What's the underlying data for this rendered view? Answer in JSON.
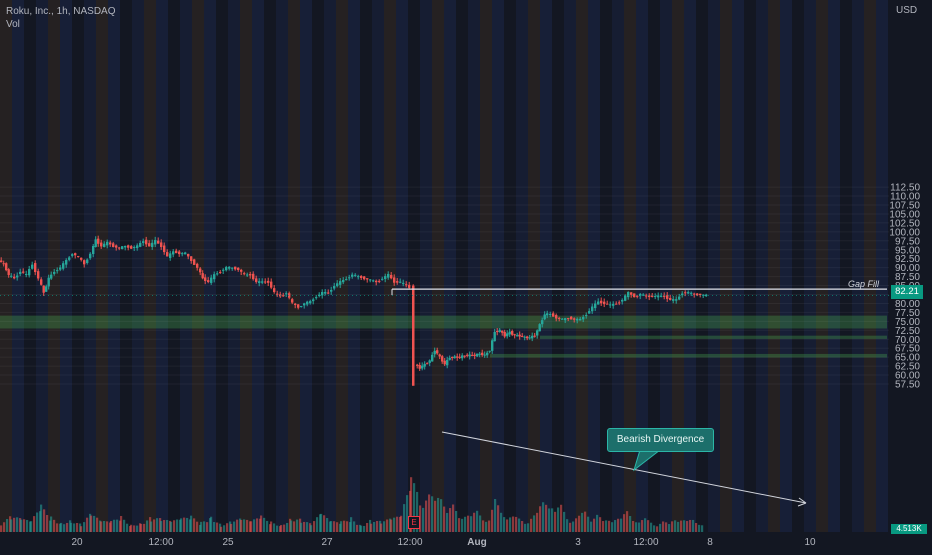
{
  "header": {
    "symbol_line": "Roku, Inc., 1h, NASDAQ",
    "volume_label": "Vol",
    "currency": "USD"
  },
  "chart_data": {
    "type": "candlestick",
    "title": "Roku, Inc., 1h, NASDAQ",
    "ylabel": "USD",
    "ylim": [
      56,
      113
    ],
    "y_ticks": [
      "112.50",
      "110.00",
      "107.50",
      "105.00",
      "102.50",
      "100.00",
      "97.50",
      "95.00",
      "92.50",
      "90.00",
      "87.50",
      "85.00",
      "82.50",
      "80.00",
      "77.50",
      "75.00",
      "72.50",
      "70.00",
      "67.50",
      "65.00",
      "62.50",
      "60.00",
      "57.50"
    ],
    "x_ticks": [
      "20",
      "12:00",
      "25",
      "27",
      "12:00",
      "Aug",
      "3",
      "12:00",
      "8",
      "10"
    ],
    "last_price": "82.21",
    "volume_last": "4.513K",
    "annotations": {
      "gap_fill": {
        "label": "Gap Fill",
        "price": 84.0
      },
      "bearish_divergence": {
        "label": "Bearish Divergence"
      },
      "earnings_marker": "E"
    },
    "zones": [
      {
        "from": 73.0,
        "to": 76.6
      },
      {
        "from": 70.1,
        "to": 71.0
      },
      {
        "from": 64.9,
        "to": 65.9
      }
    ],
    "colors": {
      "up": "#26a69a",
      "down": "#ef5350",
      "background": "#131722"
    },
    "price_path": [
      [
        0,
        92
      ],
      [
        5,
        91
      ],
      [
        10,
        88
      ],
      [
        16,
        87
      ],
      [
        22,
        89
      ],
      [
        28,
        88
      ],
      [
        34,
        91
      ],
      [
        40,
        87
      ],
      [
        45,
        83
      ],
      [
        50,
        87
      ],
      [
        56,
        89
      ],
      [
        62,
        90
      ],
      [
        68,
        92
      ],
      [
        74,
        94
      ],
      [
        80,
        93
      ],
      [
        86,
        91
      ],
      [
        92,
        94
      ],
      [
        97,
        97.8
      ],
      [
        103,
        96
      ],
      [
        109,
        97
      ],
      [
        115,
        96
      ],
      [
        121,
        95.5
      ],
      [
        127,
        96
      ],
      [
        133,
        95.5
      ],
      [
        139,
        96
      ],
      [
        145,
        97.5
      ],
      [
        151,
        96
      ],
      [
        157,
        97.5
      ],
      [
        163,
        96
      ],
      [
        169,
        93
      ],
      [
        175,
        94.5
      ],
      [
        181,
        94
      ],
      [
        187,
        94
      ],
      [
        193,
        92
      ],
      [
        199,
        90
      ],
      [
        204,
        87
      ],
      [
        210,
        86
      ],
      [
        216,
        88
      ],
      [
        222,
        89
      ],
      [
        228,
        90
      ],
      [
        234,
        90
      ],
      [
        240,
        89.5
      ],
      [
        246,
        88
      ],
      [
        252,
        88
      ],
      [
        258,
        86
      ],
      [
        264,
        86
      ],
      [
        270,
        86
      ],
      [
        276,
        83
      ],
      [
        282,
        82
      ],
      [
        288,
        83
      ],
      [
        294,
        80
      ],
      [
        300,
        79
      ],
      [
        306,
        80
      ],
      [
        312,
        80.5
      ],
      [
        318,
        82
      ],
      [
        324,
        83
      ],
      [
        330,
        83
      ],
      [
        336,
        85
      ],
      [
        342,
        86
      ],
      [
        348,
        87
      ],
      [
        354,
        88
      ],
      [
        360,
        87.5
      ],
      [
        366,
        87
      ],
      [
        372,
        86.5
      ],
      [
        378,
        86
      ],
      [
        384,
        87
      ],
      [
        390,
        88
      ],
      [
        396,
        86
      ],
      [
        402,
        86
      ],
      [
        408,
        85
      ],
      [
        412,
        84.5
      ],
      [
        416,
        63
      ],
      [
        421,
        62
      ],
      [
        426,
        63
      ],
      [
        431,
        64
      ],
      [
        436,
        67
      ],
      [
        441,
        65
      ],
      [
        446,
        63
      ],
      [
        451,
        65
      ],
      [
        456,
        65
      ],
      [
        461,
        65
      ],
      [
        466,
        65.5
      ],
      [
        471,
        65.5
      ],
      [
        476,
        65.5
      ],
      [
        481,
        66
      ],
      [
        486,
        65.5
      ],
      [
        491,
        67
      ],
      [
        496,
        72
      ],
      [
        501,
        72.5
      ],
      [
        506,
        71
      ],
      [
        511,
        72
      ],
      [
        516,
        71
      ],
      [
        521,
        71
      ],
      [
        526,
        70.5
      ],
      [
        531,
        70.5
      ],
      [
        536,
        71
      ],
      [
        541,
        74
      ],
      [
        546,
        77
      ],
      [
        552,
        77
      ],
      [
        558,
        76
      ],
      [
        564,
        75.5
      ],
      [
        570,
        76
      ],
      [
        576,
        75.5
      ],
      [
        582,
        75.5
      ],
      [
        588,
        77
      ],
      [
        594,
        79
      ],
      [
        600,
        80.5
      ],
      [
        606,
        80
      ],
      [
        612,
        79.5
      ],
      [
        618,
        80
      ],
      [
        624,
        81
      ],
      [
        630,
        83
      ],
      [
        636,
        82
      ],
      [
        642,
        82.5
      ],
      [
        648,
        82
      ],
      [
        654,
        82
      ],
      [
        660,
        82
      ],
      [
        666,
        82
      ],
      [
        672,
        81
      ],
      [
        678,
        81
      ],
      [
        684,
        83
      ],
      [
        690,
        83
      ],
      [
        696,
        82.5
      ],
      [
        702,
        82.5
      ],
      [
        708,
        82.2
      ]
    ],
    "volume_path": [
      [
        0,
        0.2
      ],
      [
        10,
        0.3
      ],
      [
        20,
        0.25
      ],
      [
        30,
        0.2
      ],
      [
        40,
        0.5
      ],
      [
        50,
        0.3
      ],
      [
        60,
        0.2
      ],
      [
        70,
        0.25
      ],
      [
        80,
        0.15
      ],
      [
        90,
        0.35
      ],
      [
        100,
        0.2
      ],
      [
        110,
        0.2
      ],
      [
        120,
        0.3
      ],
      [
        130,
        0.15
      ],
      [
        140,
        0.2
      ],
      [
        150,
        0.3
      ],
      [
        160,
        0.25
      ],
      [
        170,
        0.2
      ],
      [
        180,
        0.25
      ],
      [
        190,
        0.3
      ],
      [
        200,
        0.2
      ],
      [
        210,
        0.35
      ],
      [
        220,
        0.15
      ],
      [
        230,
        0.2
      ],
      [
        240,
        0.25
      ],
      [
        250,
        0.2
      ],
      [
        260,
        0.3
      ],
      [
        270,
        0.2
      ],
      [
        280,
        0.15
      ],
      [
        290,
        0.3
      ],
      [
        300,
        0.25
      ],
      [
        310,
        0.15
      ],
      [
        320,
        0.35
      ],
      [
        330,
        0.2
      ],
      [
        340,
        0.2
      ],
      [
        350,
        0.3
      ],
      [
        360,
        0.15
      ],
      [
        370,
        0.25
      ],
      [
        380,
        0.2
      ],
      [
        390,
        0.25
      ],
      [
        400,
        0.3
      ],
      [
        410,
        1.0
      ],
      [
        416,
        0.9
      ],
      [
        422,
        0.6
      ],
      [
        428,
        0.7
      ],
      [
        434,
        0.6
      ],
      [
        440,
        0.9
      ],
      [
        446,
        0.4
      ],
      [
        452,
        0.5
      ],
      [
        458,
        0.3
      ],
      [
        464,
        0.4
      ],
      [
        470,
        0.3
      ],
      [
        476,
        0.4
      ],
      [
        482,
        0.3
      ],
      [
        488,
        0.25
      ],
      [
        494,
        0.6
      ],
      [
        500,
        0.4
      ],
      [
        506,
        0.35
      ],
      [
        512,
        0.3
      ],
      [
        518,
        0.25
      ],
      [
        524,
        0.2
      ],
      [
        530,
        0.3
      ],
      [
        536,
        0.35
      ],
      [
        542,
        0.6
      ],
      [
        548,
        0.7
      ],
      [
        554,
        0.4
      ],
      [
        560,
        0.5
      ],
      [
        566,
        0.3
      ],
      [
        572,
        0.25
      ],
      [
        578,
        0.3
      ],
      [
        584,
        0.4
      ],
      [
        590,
        0.3
      ],
      [
        596,
        0.35
      ],
      [
        602,
        0.2
      ],
      [
        608,
        0.25
      ],
      [
        614,
        0.3
      ],
      [
        620,
        0.25
      ],
      [
        626,
        0.4
      ],
      [
        632,
        0.3
      ],
      [
        638,
        0.2
      ],
      [
        644,
        0.25
      ],
      [
        650,
        0.2
      ],
      [
        656,
        0.15
      ],
      [
        662,
        0.2
      ],
      [
        668,
        0.15
      ],
      [
        674,
        0.3
      ],
      [
        680,
        0.25
      ],
      [
        686,
        0.2
      ],
      [
        692,
        0.25
      ],
      [
        698,
        0.2
      ],
      [
        704,
        0.1
      ]
    ]
  }
}
